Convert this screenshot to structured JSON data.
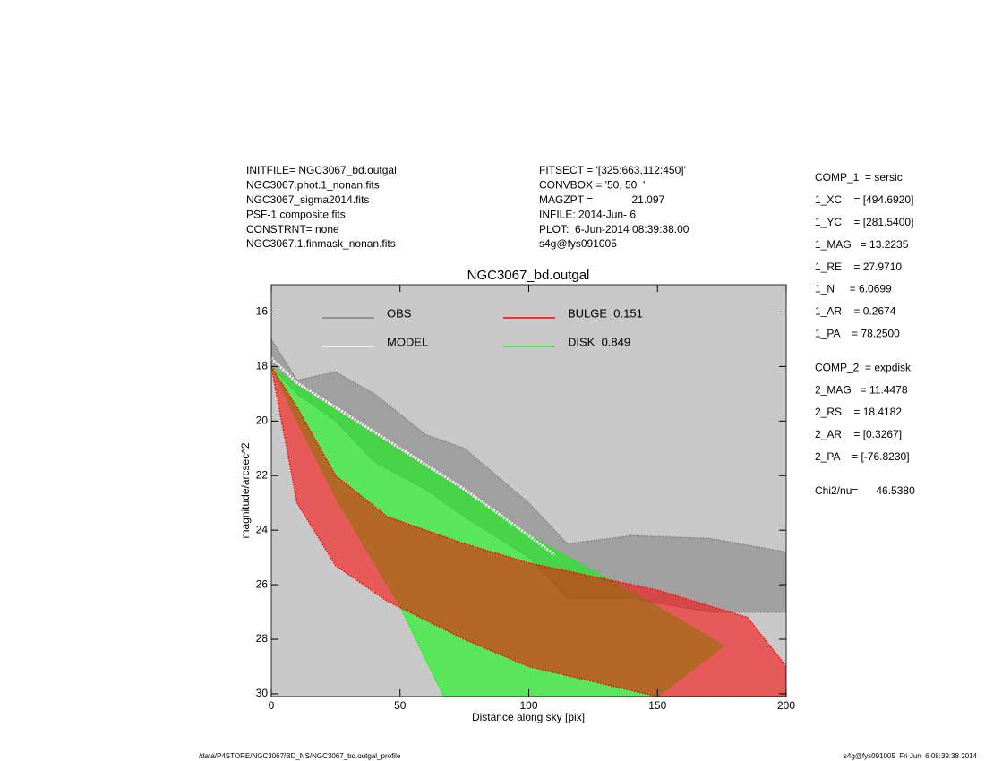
{
  "info": {
    "header_left": [
      "INITFILE= NGC3067_bd.outgal",
      "NGC3067.phot.1_nonan.fits",
      "NGC3067_sigma2014.fits",
      "PSF-1.composite.fits",
      "CONSTRNT= none",
      "NGC3067.1.finmask_nonan.fits"
    ],
    "header_mid": [
      "FITSECT = '[325:663,112:450]'",
      "CONVBOX = '50, 50  '",
      "MAGZPT =             21.097",
      "INFILE: 2014-Jun- 6",
      "PLOT:  6-Jun-2014 08:39:38.00",
      "s4g@fys091005"
    ],
    "params": [
      [
        "COMP_1  = sersic",
        "1_XC    = [494.6920]",
        "1_YC    = [281.5400]",
        "1_MAG   = 13.2235",
        "1_RE    = 27.9710",
        "1_N     = 6.0699",
        "1_AR    = 0.2674",
        "1_PA    = 78.2500"
      ],
      [
        "COMP_2  = expdisk",
        "2_MAG   = 11.4478",
        "2_RS    = 18.4182",
        "2_AR    = [0.3267]",
        "2_PA    = [-76.8230]"
      ],
      [
        "Chi2/nu=      46.5380"
      ]
    ],
    "footer_left": "/data/P4STORE/NGC3067/BD_NS/NGC3067_bd.outgal_profile",
    "footer_right": "s4g@fys091005  Fri Jun  6 08:39:38 2014"
  },
  "chart_data": {
    "type": "profile",
    "title": "NGC3067_bd.outgal",
    "x_label": "Distance along sky [pix]",
    "y_label": "magnitude/arcsec^2",
    "xlim": [
      0,
      200
    ],
    "xticks": [
      0,
      50,
      100,
      150,
      200
    ],
    "ylim": [
      30.1,
      15
    ],
    "yticks": [
      16,
      18,
      20,
      22,
      24,
      26,
      28,
      30
    ],
    "background": "#c8c8c8",
    "series": [
      {
        "name": "OBS",
        "color": "#808080",
        "x": [
          0,
          10,
          25,
          40,
          60,
          75,
          100,
          115,
          140,
          170,
          200
        ],
        "values": [
          17,
          18.5,
          18.2,
          19,
          20.5,
          21,
          23,
          24.5,
          24.2,
          24.3,
          24.8
        ],
        "lower": [
          18,
          19,
          20,
          21.5,
          22.5,
          23.5,
          25,
          26.5,
          26.5,
          27,
          27
        ]
      },
      {
        "name": "MODEL",
        "color": "#ffffff",
        "x": [
          0,
          10,
          25,
          50,
          75,
          100,
          110
        ],
        "values": [
          17.7,
          18.6,
          19.5,
          21,
          22.5,
          24.2,
          24.9
        ]
      },
      {
        "name": "BULGE  0.151",
        "color": "#ff0000",
        "x": [
          0,
          10,
          25,
          45,
          75,
          100,
          150,
          185,
          200
        ],
        "values": [
          18,
          19.5,
          22,
          23.5,
          24.5,
          25.2,
          26.2,
          27.2,
          29
        ],
        "lower": [
          18,
          23,
          25.3,
          26.6,
          28,
          29,
          30.1,
          30.1,
          30.1
        ]
      },
      {
        "name": "DISK  0.849",
        "color": "#00ff00",
        "x": [
          0,
          10,
          25,
          50,
          67,
          100,
          150,
          175
        ],
        "values": [
          18,
          18.7,
          19.6,
          21.1,
          22.1,
          24.2,
          26.8,
          28.2
        ],
        "lower": [
          18,
          20,
          22.8,
          26.8,
          30.1,
          30.1,
          30.1,
          28.3
        ]
      }
    ]
  }
}
